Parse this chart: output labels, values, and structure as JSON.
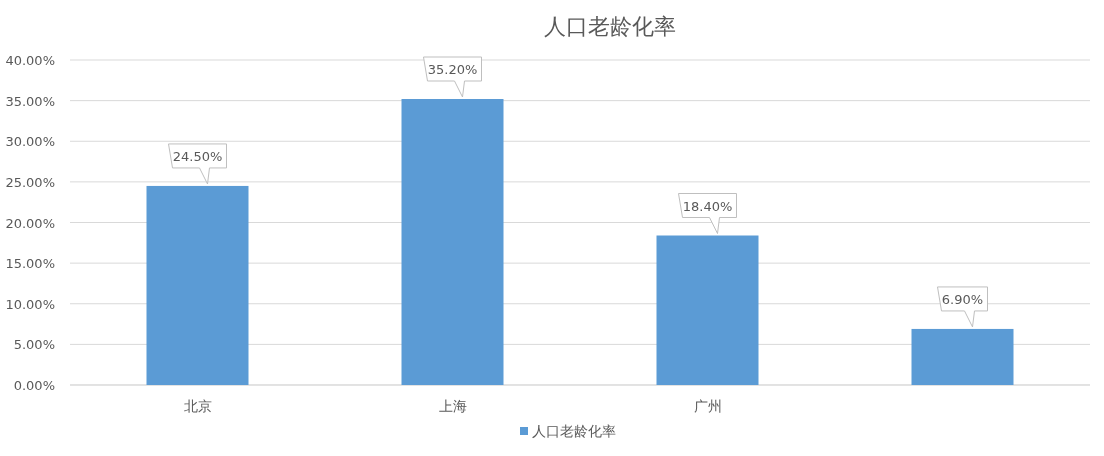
{
  "chart_data": {
    "type": "bar",
    "title": "人口老龄化率",
    "categories": [
      "北京",
      "上海",
      "广州",
      null
    ],
    "series": [
      {
        "name": "人口老龄化率",
        "color": "#5b9bd5",
        "values": [
          24.5,
          35.2,
          18.4,
          6.9
        ],
        "value_labels": [
          "24.50%",
          "35.20%",
          "18.40%",
          "6.90%"
        ]
      }
    ],
    "ylim": [
      0,
      40
    ],
    "yticks": [
      {
        "value": 0,
        "label": "0.00%"
      },
      {
        "value": 5,
        "label": "5.00%"
      },
      {
        "value": 10,
        "label": "10.00%"
      },
      {
        "value": 15,
        "label": "15.00%"
      },
      {
        "value": 20,
        "label": "20.00%"
      },
      {
        "value": 25,
        "label": "25.00%"
      },
      {
        "value": 30,
        "label": "30.00%"
      },
      {
        "value": 35,
        "label": "35.00%"
      },
      {
        "value": 40,
        "label": "40.00%"
      }
    ],
    "grid": "y",
    "legend": "bottom"
  }
}
